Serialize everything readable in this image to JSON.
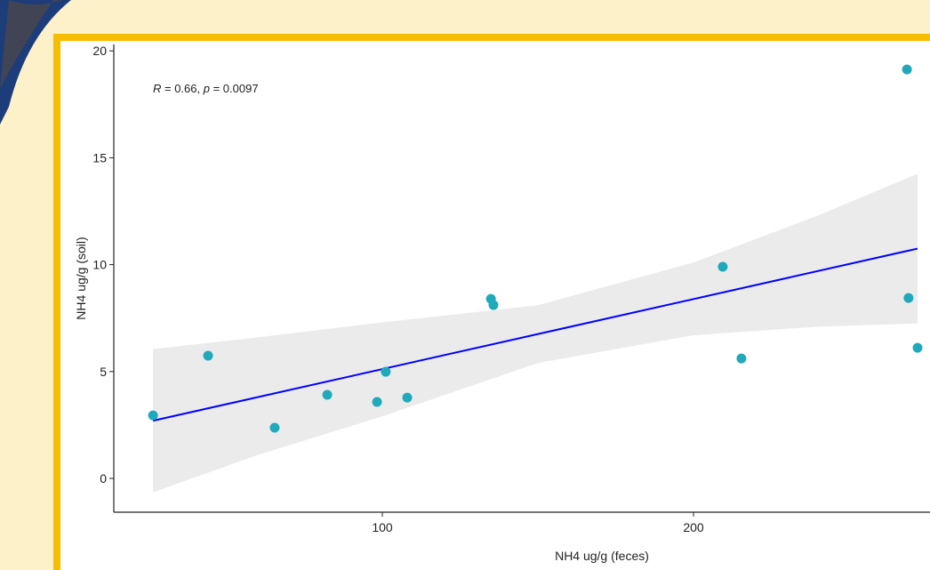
{
  "chart_data": {
    "type": "scatter",
    "annotation": [
      "R",
      " = 0.66, ",
      "p",
      " = 0.0097"
    ],
    "x_label": "NH4 ug/g (feces)",
    "y_label": "NH4 ug/g (soil)",
    "xlim": [
      13.7,
      276
    ],
    "xticks": [
      100,
      200
    ],
    "ylim": [
      -1.58,
      20.3
    ],
    "yticks": [
      0,
      5,
      10,
      15,
      20
    ],
    "series": [
      {
        "color": "#1fa9bb",
        "x": [
          26.3,
          44.0,
          65.4,
          82.3,
          98.3,
          101.1,
          108.0,
          134.9,
          135.7,
          209.4,
          215.4,
          268.6,
          269.1,
          272.0
        ],
        "values": [
          2.95,
          5.74,
          2.37,
          3.91,
          3.58,
          4.99,
          3.78,
          8.4,
          8.11,
          9.9,
          5.61,
          19.13,
          8.44,
          6.11
        ]
      }
    ],
    "fit": {
      "color": "#0000ff",
      "x": [
        26.3,
        272.0
      ],
      "values": [
        2.7,
        10.75
      ]
    },
    "band": {
      "color": "#ebebeb",
      "x": [
        26.3,
        60,
        100,
        150,
        200,
        240,
        272
      ],
      "lower": [
        -0.65,
        1.1,
        2.9,
        5.4,
        6.7,
        7.1,
        7.25
      ],
      "upper": [
        6.05,
        6.6,
        7.3,
        8.1,
        10.1,
        12.3,
        14.25
      ]
    }
  }
}
